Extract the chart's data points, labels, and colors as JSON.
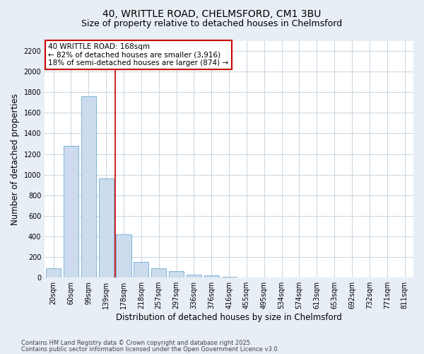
{
  "title_line1": "40, WRITTLE ROAD, CHELMSFORD, CM1 3BU",
  "title_line2": "Size of property relative to detached houses in Chelmsford",
  "xlabel": "Distribution of detached houses by size in Chelmsford",
  "ylabel": "Number of detached properties",
  "categories": [
    "20sqm",
    "60sqm",
    "99sqm",
    "139sqm",
    "178sqm",
    "218sqm",
    "257sqm",
    "297sqm",
    "336sqm",
    "376sqm",
    "416sqm",
    "455sqm",
    "495sqm",
    "534sqm",
    "574sqm",
    "613sqm",
    "653sqm",
    "692sqm",
    "732sqm",
    "771sqm",
    "811sqm"
  ],
  "values": [
    90,
    1280,
    1760,
    960,
    420,
    150,
    90,
    60,
    30,
    20,
    5,
    2,
    0,
    0,
    0,
    0,
    0,
    0,
    0,
    0,
    0
  ],
  "bar_color": "#ccdcee",
  "bar_edge_color": "#6aaad4",
  "vline_color": "#cc0000",
  "vline_pos": 3.5,
  "annotation_text": "40 WRITTLE ROAD: 168sqm\n← 82% of detached houses are smaller (3,916)\n18% of semi-detached houses are larger (874) →",
  "annotation_box_facecolor": "#ffffff",
  "annotation_box_edgecolor": "#cc0000",
  "ylim": [
    0,
    2300
  ],
  "yticks": [
    0,
    200,
    400,
    600,
    800,
    1000,
    1200,
    1400,
    1600,
    1800,
    2000,
    2200
  ],
  "footnote1": "Contains HM Land Registry data © Crown copyright and database right 2025.",
  "footnote2": "Contains public sector information licensed under the Open Government Licence v3.0.",
  "fig_bg_color": "#e8eef5",
  "plot_bg_color": "#ffffff",
  "grid_color": "#c8d4e0",
  "title_fontsize": 10,
  "subtitle_fontsize": 9,
  "tick_fontsize": 7,
  "label_fontsize": 8.5,
  "annot_fontsize": 7.5,
  "footnote_fontsize": 6
}
